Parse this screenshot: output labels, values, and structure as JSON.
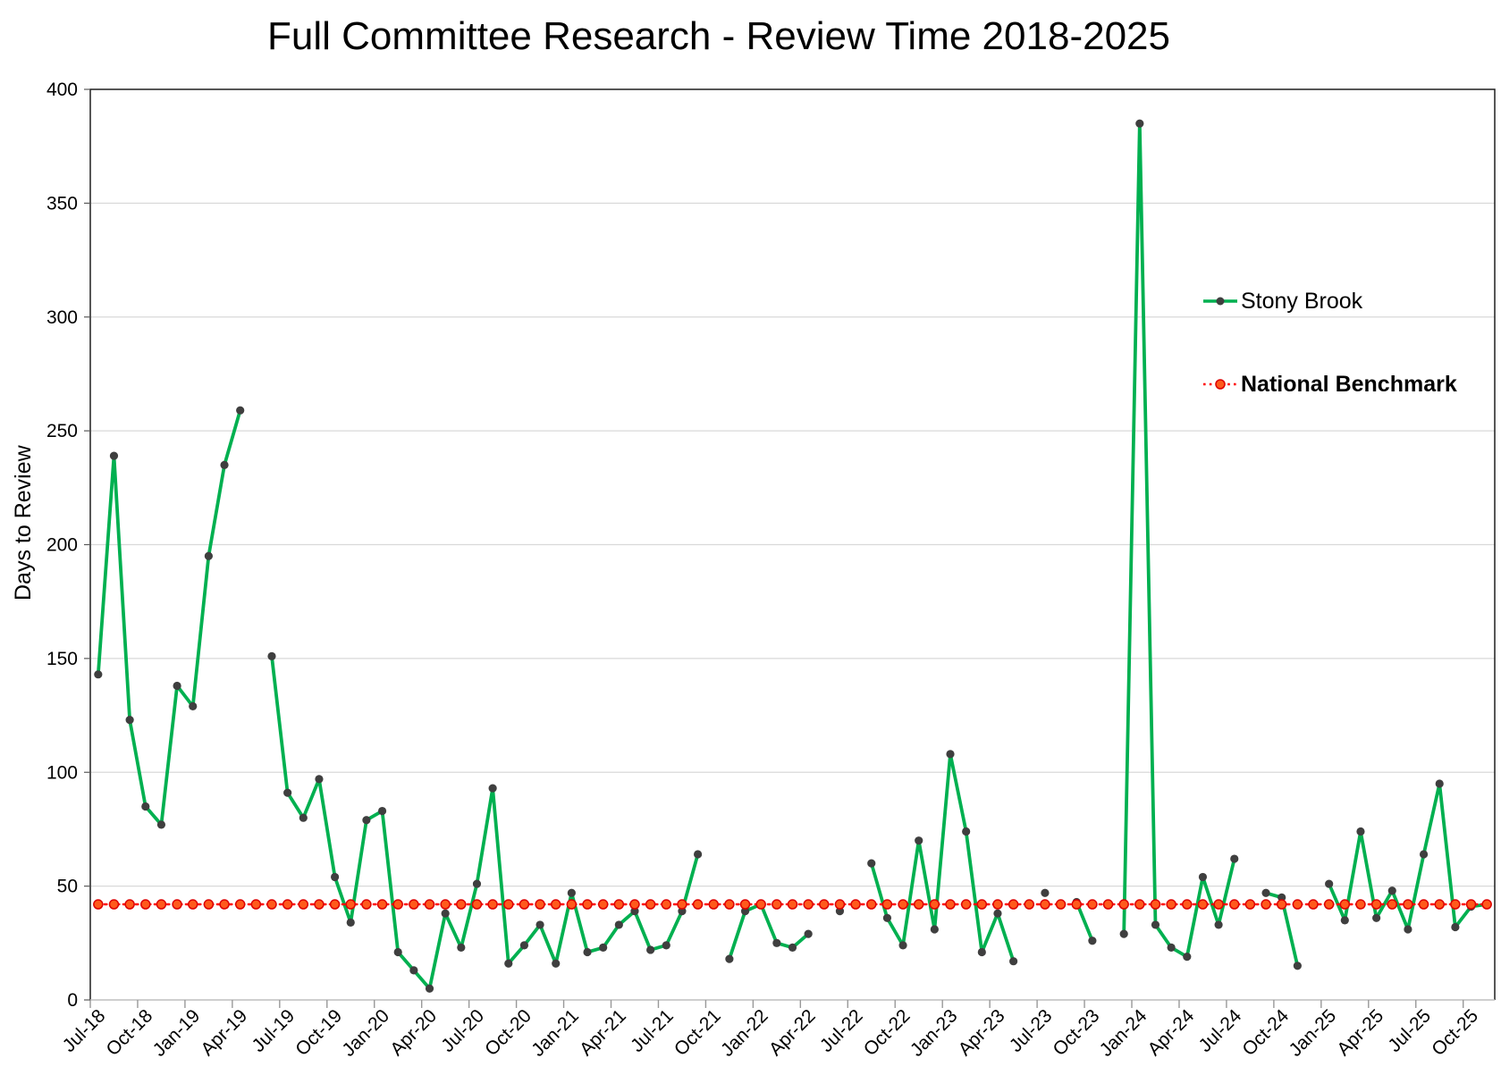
{
  "chart": {
    "title": "Full Committee Research - Review Time 2018-2025",
    "y_axis": {
      "title": "Days to Review",
      "tick_labels": [
        "0",
        "50",
        "100",
        "150",
        "200",
        "250",
        "300",
        "350",
        "400"
      ]
    },
    "x_axis": {
      "tick_labels": [
        "Jul-18",
        "Oct-18",
        "Jan-19",
        "Apr-19",
        "Jul-19",
        "Oct-19",
        "Jan-20",
        "Apr-20",
        "Jul-20",
        "Oct-20",
        "Jan-21",
        "Apr-21",
        "Jul-21",
        "Oct-21",
        "Jan-22",
        "Apr-22",
        "Jul-22",
        "Oct-22",
        "Jan-23",
        "Apr-23",
        "Jul-23",
        "Oct-23",
        "Jan-24",
        "Apr-24",
        "Jul-24",
        "Oct-24",
        "Jan-25",
        "Apr-25",
        "Jul-25",
        "Oct-25"
      ]
    },
    "legend": {
      "items": [
        {
          "label": "Stony Brook",
          "line_color": "#00B050",
          "marker_color": "#3F3F3F",
          "line_style": "solid",
          "bold": false
        },
        {
          "label": "National Benchmark",
          "line_color": "#FF0000",
          "marker_color": "#FF5A1C",
          "line_style": "dotted",
          "bold": true
        }
      ]
    }
  },
  "chart_data": {
    "type": "line",
    "title": "Full Committee Research - Review Time 2018-2025",
    "ylabel": "Days to Review",
    "xlabel": "",
    "ylim": [
      0,
      400
    ],
    "ytick_step": 50,
    "grid": true,
    "gridline_color": "#D9D9D9",
    "legend_position": "inside-right",
    "x_tick_label_interval": 3,
    "x": [
      "Jul-18",
      "Aug-18",
      "Sep-18",
      "Oct-18",
      "Nov-18",
      "Dec-18",
      "Jan-19",
      "Feb-19",
      "Mar-19",
      "Apr-19",
      "May-19",
      "Jun-19",
      "Jul-19",
      "Aug-19",
      "Sep-19",
      "Oct-19",
      "Nov-19",
      "Dec-19",
      "Jan-20",
      "Feb-20",
      "Mar-20",
      "Apr-20",
      "May-20",
      "Jun-20",
      "Jul-20",
      "Aug-20",
      "Sep-20",
      "Oct-20",
      "Nov-20",
      "Dec-20",
      "Jan-21",
      "Feb-21",
      "Mar-21",
      "Apr-21",
      "May-21",
      "Jun-21",
      "Jul-21",
      "Aug-21",
      "Sep-21",
      "Oct-21",
      "Nov-21",
      "Dec-21",
      "Jan-22",
      "Feb-22",
      "Mar-22",
      "Apr-22",
      "May-22",
      "Jun-22",
      "Jul-22",
      "Aug-22",
      "Sep-22",
      "Oct-22",
      "Nov-22",
      "Dec-22",
      "Jan-23",
      "Feb-23",
      "Mar-23",
      "Apr-23",
      "May-23",
      "Jun-23",
      "Jul-23",
      "Aug-23",
      "Sep-23",
      "Oct-23",
      "Nov-23",
      "Dec-23",
      "Jan-24",
      "Feb-24",
      "Mar-24",
      "Apr-24",
      "May-24",
      "Jun-24",
      "Jul-24",
      "Aug-24",
      "Sep-24",
      "Oct-24",
      "Nov-24",
      "Dec-24",
      "Jan-25",
      "Feb-25",
      "Mar-25",
      "Apr-25",
      "May-25",
      "Jun-25",
      "Jul-25",
      "Aug-25",
      "Sep-25",
      "Oct-25",
      "Nov-25"
    ],
    "series": [
      {
        "name": "Stony Brook",
        "color": "#00B050",
        "marker_color": "#3F3F3F",
        "values": [
          143,
          239,
          123,
          85,
          77,
          138,
          129,
          195,
          235,
          259,
          null,
          151,
          91,
          80,
          97,
          54,
          34,
          79,
          83,
          21,
          13,
          5,
          38,
          23,
          51,
          93,
          16,
          24,
          33,
          16,
          47,
          21,
          23,
          33,
          39,
          22,
          24,
          39,
          64,
          null,
          18,
          39,
          42,
          25,
          23,
          29,
          null,
          39,
          null,
          60,
          36,
          24,
          70,
          31,
          108,
          74,
          21,
          38,
          17,
          null,
          47,
          null,
          43,
          26,
          null,
          29,
          385,
          33,
          23,
          19,
          54,
          33,
          62,
          null,
          47,
          45,
          15,
          null,
          51,
          35,
          74,
          36,
          48,
          31,
          64,
          95,
          32,
          41,
          42
        ]
      },
      {
        "name": "National Benchmark",
        "color": "#FF0000",
        "marker_fill": "#FF5A1C",
        "marker_stroke": "#DD0000",
        "line_style": "dotted",
        "constant_value": 42
      }
    ]
  }
}
